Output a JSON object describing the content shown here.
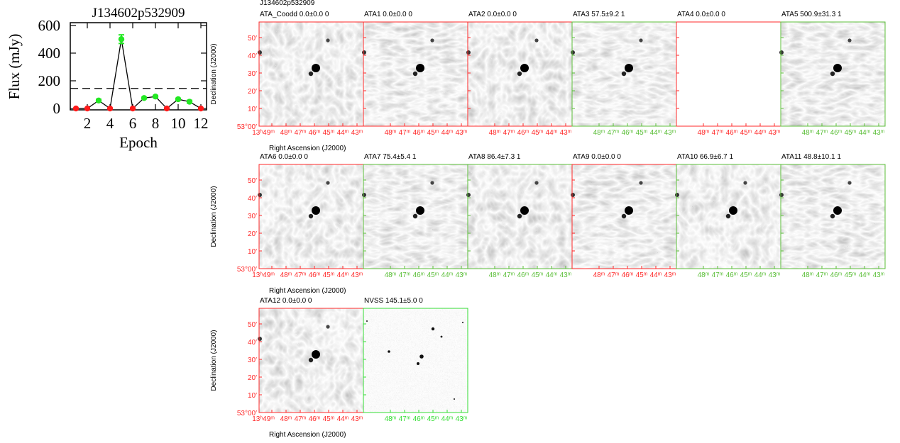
{
  "chart_data": {
    "type": "line",
    "title": "J134602p532909",
    "x_label": "Epoch",
    "y_label": "Flux (mJy)",
    "x": [
      1,
      2,
      3,
      4,
      5,
      6,
      7,
      8,
      9,
      10,
      11,
      12
    ],
    "values": [
      0,
      0,
      57.5,
      0,
      500.9,
      0,
      75.4,
      86.4,
      0,
      66.9,
      48.8,
      0
    ],
    "errors": [
      0,
      0,
      9.2,
      0,
      31.3,
      0,
      5.4,
      7.3,
      0,
      6.7,
      10.1,
      0
    ],
    "color": "#000000",
    "marker_colors": [
      "#ff1a1a",
      "#ff1a1a",
      "#22e822",
      "#ff1a1a",
      "#22e822",
      "#ff1a1a",
      "#22e822",
      "#22e822",
      "#ff1a1a",
      "#22e822",
      "#22e822",
      "#ff1a1a"
    ],
    "reference_line": 145.1,
    "xlim": [
      0.5,
      12.5
    ],
    "ylim": [
      -10,
      620
    ],
    "xticks": [
      2,
      4,
      6,
      8,
      10,
      12
    ],
    "yticks": [
      0,
      200,
      400,
      600
    ]
  },
  "cutouts": {
    "header": "J134602p532909",
    "x_label": "Right Ascension (J2000)",
    "y_label": "Declination (J2000)",
    "ra_ticks": [
      "13ʰ49ᵐ",
      "48ᵐ",
      "47ᵐ",
      "46ᵐ",
      "45ᵐ",
      "44ᵐ",
      "43ᵐ"
    ],
    "dec_ticks": [
      "53°00′",
      "10′",
      "20′",
      "30′",
      "40′",
      "50′"
    ],
    "panels": [
      {
        "title": "ATA_Coodd  0.0±0.0  0",
        "color": "#ff2a2a",
        "image": "ata"
      },
      {
        "title": "ATA1  0.0±0.0  0",
        "color": "#ff2a2a",
        "image": "ata"
      },
      {
        "title": "ATA2  0.0±0.0  0",
        "color": "#ff2a2a",
        "image": "ata"
      },
      {
        "title": "ATA3  57.5±9.2  1",
        "color": "#5cbf3a",
        "image": "ata"
      },
      {
        "title": "ATA4  0.0±0.0  0",
        "color": "#ff2a2a",
        "image": "blank"
      },
      {
        "title": "ATA5  500.9±31.3  1",
        "color": "#5cbf3a",
        "image": "ata"
      },
      {
        "title": "ATA6  0.0±0.0  0",
        "color": "#ff2a2a",
        "image": "ata"
      },
      {
        "title": "ATA7  75.4±5.4  1",
        "color": "#5cbf3a",
        "image": "ata"
      },
      {
        "title": "ATA8  86.4±7.3  1",
        "color": "#5cbf3a",
        "image": "ata"
      },
      {
        "title": "ATA9  0.0±0.0  0",
        "color": "#ff2a2a",
        "image": "ata"
      },
      {
        "title": "ATA10  66.9±6.7  1",
        "color": "#5cbf3a",
        "image": "ata"
      },
      {
        "title": "ATA11  48.8±10.1  1",
        "color": "#5cbf3a",
        "image": "ata"
      },
      {
        "title": "ATA12  0.0±0.0  0",
        "color": "#ff2a2a",
        "image": "ata"
      },
      {
        "title": "NVSS  145.1±5.0  0",
        "color": "#33dd33",
        "image": "nvss"
      }
    ]
  }
}
